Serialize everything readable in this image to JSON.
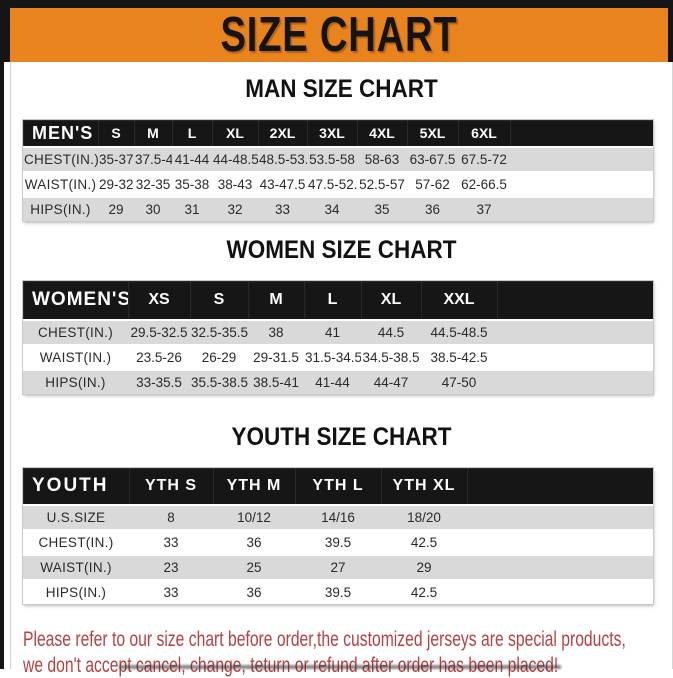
{
  "colors": {
    "banner_bg": "#e8831d",
    "header_bg": "#161616",
    "row_alt": "#d9d9d9",
    "footer_red": "#b94042"
  },
  "banner": {
    "title": "SIZE CHART"
  },
  "sections": [
    {
      "heading": "MAN SIZE CHART",
      "table": {
        "header": [
          "MEN'S",
          "S",
          "M",
          "L",
          "XL",
          "2XL",
          "3XL",
          "4XL",
          "5XL",
          "6XL"
        ],
        "rows": [
          {
            "label": "CHEST(IN.)",
            "values": [
              "35-37.5",
              "37.5-41",
              "41-44",
              "44-48.5",
              "48.5-53.5",
              "53.5-58",
              "58-63",
              "63-67.5",
              "67.5-72"
            ]
          },
          {
            "label": "WAIST(IN.)",
            "values": [
              "29-32",
              "32-35",
              "35-38",
              "38-43",
              "43-47.5",
              "47.5-52.5",
              "52.5-57",
              "57-62",
              "62-66.5"
            ]
          },
          {
            "label": "HIPS(IN.)",
            "values": [
              "29",
              "30",
              "31",
              "32",
              "33",
              "34",
              "35",
              "36",
              "37"
            ]
          }
        ]
      }
    },
    {
      "heading": "WOMEN SIZE CHART",
      "table": {
        "header": [
          "WOMEN'S",
          "XS",
          "S",
          "M",
          "L",
          "XL",
          "XXL"
        ],
        "rows": [
          {
            "label": "CHEST(IN.)",
            "values": [
              "29.5-32.5",
              "32.5-35.5",
              "38",
              "41",
              "44.5",
              "44.5-48.5"
            ]
          },
          {
            "label": "WAIST(IN.)",
            "values": [
              "23.5-26",
              "26-29",
              "29-31.5",
              "31.5-34.5",
              "34.5-38.5",
              "38.5-42.5"
            ]
          },
          {
            "label": "HIPS(IN.)",
            "values": [
              "33-35.5",
              "35.5-38.5",
              "38.5-41",
              "41-44",
              "44-47",
              "47-50"
            ]
          }
        ]
      }
    },
    {
      "heading": "YOUTH SIZE CHART",
      "table": {
        "header": [
          "YOUTH",
          "YTH S",
          "YTH M",
          "YTH L",
          "YTH XL"
        ],
        "rows": [
          {
            "label": "U.S.SIZE",
            "values": [
              "8",
              "10/12",
              "14/16",
              "18/20"
            ]
          },
          {
            "label": "CHEST(IN.)",
            "values": [
              "33",
              "36",
              "39.5",
              "42.5"
            ]
          },
          {
            "label": "WAIST(IN.)",
            "values": [
              "23",
              "25",
              "27",
              "29"
            ]
          },
          {
            "label": "HIPS(IN.)",
            "values": [
              "33",
              "36",
              "39.5",
              "42.5"
            ]
          }
        ]
      }
    }
  ],
  "footer": {
    "line1": "Please refer to our size chart before order,the customized jerseys are special products,",
    "line2": "we don't accept cancel, change, teturn or refund after order has been placed!"
  }
}
